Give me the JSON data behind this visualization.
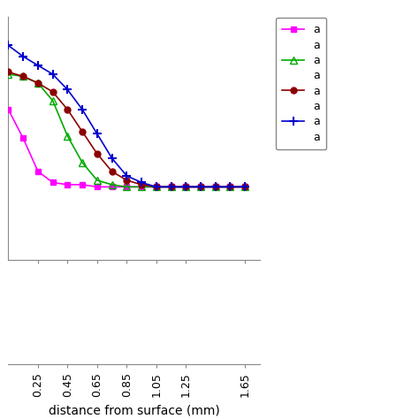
{
  "xlabel": "distance from surface (mm)",
  "xticks": [
    0.25,
    0.45,
    0.65,
    0.85,
    1.05,
    1.25,
    1.65
  ],
  "x_values": [
    0.05,
    0.15,
    0.25,
    0.35,
    0.45,
    0.55,
    0.65,
    0.75,
    0.85,
    0.95,
    1.05,
    1.15,
    1.25,
    1.35,
    1.45,
    1.55,
    1.65
  ],
  "series": [
    {
      "label": "a",
      "color": "#FF00FF",
      "marker": "s",
      "markersize": 5,
      "linewidth": 1.2,
      "markerfacecolor": "#FF00FF",
      "markeredgecolor": "#FF00FF",
      "y": [
        0.68,
        0.55,
        0.4,
        0.35,
        0.34,
        0.34,
        0.33,
        0.33,
        0.33,
        0.33,
        0.33,
        0.33,
        0.33,
        0.33,
        0.33,
        0.33,
        0.33
      ]
    },
    {
      "label": "a",
      "color": "#00AA00",
      "marker": "^",
      "markersize": 6,
      "linewidth": 1.2,
      "markerfacecolor": "none",
      "markeredgecolor": "#00AA00",
      "y": [
        0.84,
        0.83,
        0.8,
        0.72,
        0.56,
        0.44,
        0.36,
        0.34,
        0.33,
        0.33,
        0.33,
        0.33,
        0.33,
        0.33,
        0.33,
        0.33,
        0.33
      ]
    },
    {
      "label": "a",
      "color": "#8B0000",
      "marker": "o",
      "markersize": 5,
      "linewidth": 1.2,
      "markerfacecolor": "#8B0000",
      "markeredgecolor": "#8B0000",
      "y": [
        0.85,
        0.83,
        0.8,
        0.76,
        0.68,
        0.58,
        0.48,
        0.4,
        0.36,
        0.34,
        0.33,
        0.33,
        0.33,
        0.33,
        0.33,
        0.33,
        0.33
      ]
    },
    {
      "label": "a",
      "color": "#0000CC",
      "marker": "+",
      "markersize": 7,
      "linewidth": 1.2,
      "markerfacecolor": "#0000CC",
      "markeredgecolor": "#0000CC",
      "y": [
        0.97,
        0.92,
        0.88,
        0.84,
        0.77,
        0.68,
        0.57,
        0.46,
        0.38,
        0.35,
        0.33,
        0.33,
        0.33,
        0.33,
        0.33,
        0.33,
        0.33
      ]
    }
  ],
  "ylim": [
    0.0,
    1.1
  ],
  "xlim": [
    0.05,
    1.75
  ],
  "grid_color": "#bbbbbb",
  "bg_color": "#ffffff"
}
